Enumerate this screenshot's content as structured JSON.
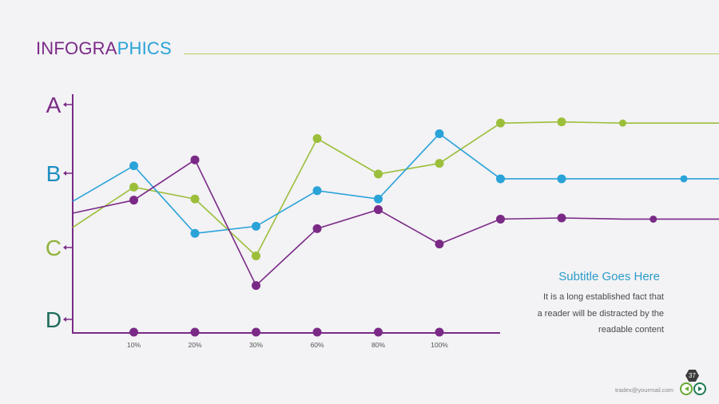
{
  "header": {
    "title_part1": "INFOGRA",
    "title_part2": "PHICS"
  },
  "text_block": {
    "subtitle": "Subtitle Goes Here",
    "lines": [
      "It is a long established fact that",
      "a reader will be distracted by the",
      "readable content"
    ]
  },
  "footer": {
    "email": "tradex@yourmail.com",
    "page_number": "37"
  },
  "colors": {
    "purple": "#7a2a86",
    "blue": "#29a3d8",
    "green": "#9bbf3a",
    "axis": "#7a2a86",
    "label_A": "#7a2a86",
    "label_B": "#1e8fc0",
    "label_C": "#8fb23a",
    "label_D": "#1e6b5c"
  },
  "chart_data": {
    "type": "line",
    "title": "",
    "xlabel": "",
    "ylabel": "",
    "y_category_labels": [
      "A",
      "B",
      "C",
      "D"
    ],
    "ylim": [
      0,
      100
    ],
    "x_tick_labels": [
      "10%",
      "20%",
      "30%",
      "60%",
      "80%",
      "100%"
    ],
    "x_positions": [
      0,
      1,
      2,
      3,
      4,
      5,
      6,
      7,
      8,
      9,
      10,
      11
    ],
    "x_tick_positions": [
      1,
      2,
      3,
      4,
      5,
      6
    ],
    "x_range": [
      0,
      11
    ],
    "axis_point_positions": [
      1,
      2,
      3,
      4,
      5,
      6
    ],
    "series": [
      {
        "name": "green",
        "color": "#9bbf3a",
        "values": [
          44.5,
          61.5,
          56.5,
          32.5,
          82,
          67,
          71.5,
          88.5,
          89,
          88.5,
          88.5,
          88.5
        ],
        "marker_positions": [
          1,
          2,
          3,
          4,
          5,
          6,
          7,
          8,
          9
        ]
      },
      {
        "name": "blue",
        "color": "#29a3d8",
        "values": [
          55.5,
          70.5,
          42,
          45,
          60,
          56.5,
          84,
          65,
          65,
          65,
          65,
          65
        ],
        "marker_positions": [
          1,
          2,
          3,
          4,
          5,
          6,
          7,
          8,
          10
        ]
      },
      {
        "name": "purple",
        "color": "#7a2a86",
        "values": [
          50.5,
          56,
          73,
          20,
          44,
          52,
          37.5,
          48,
          48.5,
          48,
          48,
          48
        ],
        "marker_positions": [
          1,
          2,
          3,
          4,
          5,
          6,
          7,
          8,
          9.5
        ]
      }
    ]
  }
}
